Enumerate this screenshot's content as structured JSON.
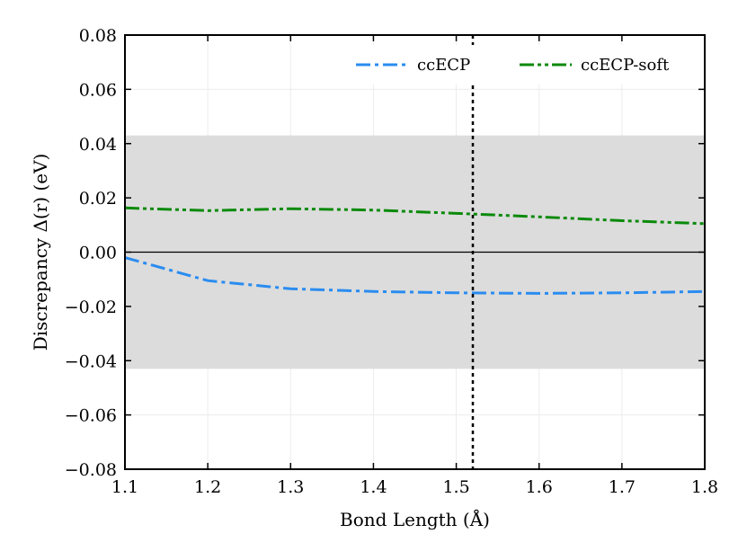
{
  "chart_data": {
    "type": "line",
    "title": "",
    "xlabel": "Bond Length (Å)",
    "ylabel": "Discrepancy Δ(r) (eV)",
    "xlim": [
      1.1,
      1.8
    ],
    "ylim": [
      -0.08,
      0.08
    ],
    "x_ticks": [
      1.1,
      1.2,
      1.3,
      1.4,
      1.5,
      1.6,
      1.7,
      1.8
    ],
    "x_tick_labels": [
      "1.1",
      "1.2",
      "1.3",
      "1.4",
      "1.5",
      "1.6",
      "1.7",
      "1.8"
    ],
    "y_ticks": [
      -0.08,
      -0.06,
      -0.04,
      -0.02,
      0.0,
      0.02,
      0.04,
      0.06,
      0.08
    ],
    "y_tick_labels": [
      "−0.08",
      "−0.06",
      "−0.04",
      "−0.02",
      "0.00",
      "0.02",
      "0.04",
      "0.06",
      "0.08"
    ],
    "grid": true,
    "legend_position": "top-right",
    "shaded_band": {
      "y_min": -0.043,
      "y_max": 0.043,
      "color": "#dcdcdc"
    },
    "reference_hline": {
      "y": 0.0,
      "color": "#000000"
    },
    "reference_vline": {
      "x": 1.52,
      "color": "#000000",
      "style": "dotted"
    },
    "x": [
      1.1,
      1.2,
      1.3,
      1.4,
      1.5,
      1.6,
      1.7,
      1.8
    ],
    "series": [
      {
        "name": "ccECP",
        "color": "#2a8cf0",
        "style": "dash-dot",
        "values": [
          -0.002,
          -0.0105,
          -0.0135,
          -0.0145,
          -0.015,
          -0.0152,
          -0.015,
          -0.0145
        ]
      },
      {
        "name": "ccECP-soft",
        "color": "#0a8a0a",
        "style": "dash-dot-dot",
        "values": [
          0.0163,
          0.0153,
          0.016,
          0.0155,
          0.0143,
          0.013,
          0.0116,
          0.0105
        ]
      }
    ]
  }
}
